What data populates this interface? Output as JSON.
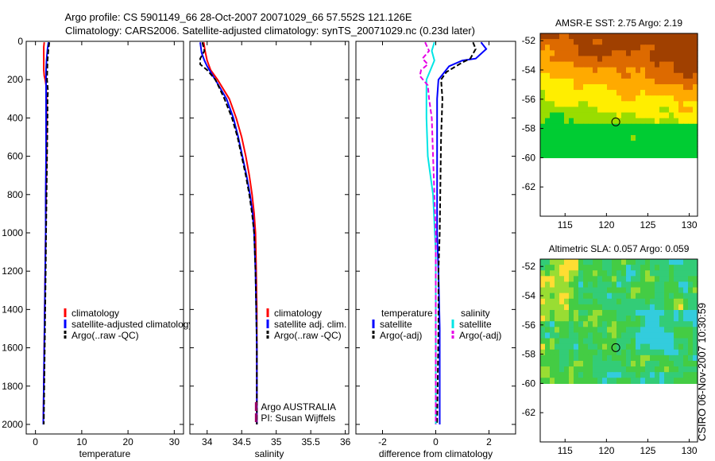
{
  "figure": {
    "title_line1": "Argo profile: CS 5901149_66 28-Oct-2007 20071029_66 57.552S 121.126E",
    "title_line2": "Climatology: CARS2006. Satellite-adjusted climatology: synTS_20071029.nc (0.23d later)",
    "side_stamp": "CSIRO 06-Nov-2007 10:30:59"
  },
  "chart_data": [
    {
      "type": "line",
      "id": "temperature",
      "xlabel": "temperature",
      "ylabel": "",
      "xlim": [
        -2,
        32
      ],
      "ylim": [
        2050,
        0
      ],
      "xticks": [
        0,
        10,
        20,
        30
      ],
      "yticks": [
        0,
        200,
        400,
        600,
        800,
        1000,
        1200,
        1400,
        1600,
        1800,
        2000
      ],
      "legend": [
        "climatology",
        "satellite-adjusted climatology",
        "Argo(..raw -QC)"
      ],
      "legend_position": "center",
      "series": [
        {
          "name": "climatology",
          "color": "#ff0000",
          "dash": "",
          "points": [
            [
              1.9,
              5
            ],
            [
              1.8,
              30
            ],
            [
              1.8,
              60
            ],
            [
              1.8,
              100
            ],
            [
              1.8,
              150
            ],
            [
              1.9,
              180
            ],
            [
              2.1,
              200
            ],
            [
              2.3,
              230
            ],
            [
              2.4,
              300
            ],
            [
              2.4,
              400
            ],
            [
              2.4,
              600
            ],
            [
              2.3,
              800
            ],
            [
              2.2,
              1000
            ],
            [
              2.1,
              1200
            ],
            [
              2.0,
              1400
            ],
            [
              1.9,
              1600
            ],
            [
              1.8,
              1800
            ],
            [
              1.7,
              2000
            ]
          ]
        },
        {
          "name": "satellite-adjusted climatology",
          "color": "#0000ff",
          "dash": "",
          "points": [
            [
              2.8,
              5
            ],
            [
              2.6,
              40
            ],
            [
              2.4,
              100
            ],
            [
              2.3,
              150
            ],
            [
              2.3,
              200
            ],
            [
              2.3,
              300
            ],
            [
              2.3,
              400
            ],
            [
              2.3,
              600
            ],
            [
              2.2,
              800
            ],
            [
              2.2,
              1000
            ],
            [
              2.1,
              1200
            ],
            [
              2.0,
              1400
            ],
            [
              1.9,
              1600
            ],
            [
              1.8,
              1800
            ],
            [
              1.7,
              2000
            ]
          ]
        },
        {
          "name": "Argo(..raw -QC)",
          "color": "#000000",
          "dash": "6,3",
          "points": [
            [
              3.0,
              5
            ],
            [
              2.8,
              40
            ],
            [
              2.6,
              100
            ],
            [
              2.5,
              200
            ],
            [
              2.7,
              260
            ],
            [
              2.6,
              300
            ],
            [
              2.6,
              400
            ],
            [
              2.5,
              600
            ],
            [
              2.4,
              800
            ],
            [
              2.3,
              1000
            ],
            [
              2.2,
              1200
            ],
            [
              2.1,
              1400
            ],
            [
              2.0,
              1600
            ],
            [
              1.9,
              1800
            ],
            [
              1.8,
              2000
            ]
          ]
        }
      ]
    },
    {
      "type": "line",
      "id": "salinity",
      "xlabel": "salinity",
      "ylabel": "",
      "xlim": [
        33.75,
        36.05
      ],
      "ylim": [
        2050,
        0
      ],
      "xticks": [
        34,
        34.5,
        35,
        35.5,
        36
      ],
      "legend": [
        "climatology",
        "satellite adj. clim.",
        "Argo(..raw -QC)"
      ],
      "legend_position": "center-right",
      "series": [
        {
          "name": "climatology",
          "color": "#ff0000",
          "dash": "",
          "points": [
            [
              33.95,
              5
            ],
            [
              33.97,
              50
            ],
            [
              34.0,
              100
            ],
            [
              34.05,
              150
            ],
            [
              34.15,
              200
            ],
            [
              34.32,
              300
            ],
            [
              34.42,
              400
            ],
            [
              34.5,
              500
            ],
            [
              34.56,
              600
            ],
            [
              34.61,
              700
            ],
            [
              34.65,
              800
            ],
            [
              34.68,
              900
            ],
            [
              34.7,
              1000
            ],
            [
              34.71,
              1200
            ],
            [
              34.72,
              1400
            ],
            [
              34.72,
              1600
            ],
            [
              34.72,
              1800
            ],
            [
              34.72,
              2000
            ]
          ]
        },
        {
          "name": "satellite adj. clim.",
          "color": "#0000ff",
          "dash": "",
          "points": [
            [
              33.9,
              5
            ],
            [
              33.92,
              60
            ],
            [
              33.96,
              100
            ],
            [
              34.0,
              130
            ],
            [
              34.05,
              160
            ],
            [
              34.15,
              220
            ],
            [
              34.28,
              300
            ],
            [
              34.38,
              400
            ],
            [
              34.45,
              500
            ],
            [
              34.51,
              600
            ],
            [
              34.57,
              700
            ],
            [
              34.62,
              800
            ],
            [
              34.66,
              900
            ],
            [
              34.68,
              1000
            ],
            [
              34.7,
              1200
            ],
            [
              34.71,
              1400
            ],
            [
              34.72,
              1600
            ],
            [
              34.72,
              1800
            ],
            [
              34.72,
              2000
            ]
          ]
        },
        {
          "name": "Argo(..raw -QC)",
          "color": "#000000",
          "dash": "6,3",
          "points": [
            [
              33.93,
              5
            ],
            [
              33.96,
              50
            ],
            [
              33.9,
              90
            ],
            [
              33.9,
              120
            ],
            [
              34.0,
              150
            ],
            [
              34.12,
              200
            ],
            [
              34.25,
              300
            ],
            [
              34.36,
              400
            ],
            [
              34.44,
              500
            ],
            [
              34.5,
              600
            ],
            [
              34.56,
              700
            ],
            [
              34.61,
              800
            ],
            [
              34.65,
              900
            ],
            [
              34.68,
              1000
            ],
            [
              34.7,
              1200
            ],
            [
              34.71,
              1400
            ],
            [
              34.72,
              1600
            ],
            [
              34.72,
              1800
            ],
            [
              34.72,
              2000
            ]
          ]
        }
      ],
      "annotations": [
        "Argo AUSTRALIA",
        "PI: Susan Wijffels"
      ]
    },
    {
      "type": "line",
      "id": "difference",
      "xlabel": "difference from climatology",
      "ylabel": "",
      "xlim": [
        -3,
        3
      ],
      "ylim": [
        2050,
        0
      ],
      "xticks": [
        -2,
        0,
        2
      ],
      "legend": [
        "temperature",
        "satellite",
        "Argo(-adj)",
        "salinity",
        "satellite",
        "Argo(-adj)"
      ],
      "legend_position": "center",
      "series": [
        {
          "name": "temperature satellite",
          "color": "#0000ff",
          "dash": "",
          "points": [
            [
              1.7,
              5
            ],
            [
              1.9,
              40
            ],
            [
              1.5,
              90
            ],
            [
              1.0,
              100
            ],
            [
              0.5,
              130
            ],
            [
              0.1,
              200
            ],
            [
              0.05,
              300
            ],
            [
              0.05,
              500
            ],
            [
              0.05,
              1000
            ],
            [
              0.1,
              1200
            ],
            [
              0.15,
              1500
            ],
            [
              0.15,
              2000
            ]
          ]
        },
        {
          "name": "temperature Argo(-adj)",
          "color": "#000000",
          "dash": "6,3",
          "points": [
            [
              1.4,
              5
            ],
            [
              1.5,
              40
            ],
            [
              1.3,
              90
            ],
            [
              1.0,
              110
            ],
            [
              0.4,
              160
            ],
            [
              0.2,
              200
            ],
            [
              0.25,
              300
            ],
            [
              0.2,
              500
            ],
            [
              0.15,
              1000
            ],
            [
              0.1,
              1200
            ],
            [
              0.1,
              1500
            ],
            [
              0.05,
              2000
            ]
          ]
        },
        {
          "name": "salinity satellite",
          "color": "#00e5e5",
          "dash": "",
          "points": [
            [
              -0.05,
              5
            ],
            [
              -0.15,
              50
            ],
            [
              -0.05,
              100
            ],
            [
              -0.35,
              200
            ],
            [
              -0.35,
              400
            ],
            [
              -0.3,
              600
            ],
            [
              -0.1,
              800
            ],
            [
              0.0,
              1100
            ],
            [
              0.0,
              2000
            ]
          ]
        },
        {
          "name": "salinity Argo(-adj)",
          "color": "#e600e6",
          "dash": "6,3",
          "points": [
            [
              -0.4,
              5
            ],
            [
              -0.25,
              50
            ],
            [
              -0.5,
              90
            ],
            [
              -0.3,
              120
            ],
            [
              -0.55,
              150
            ],
            [
              -0.6,
              180
            ],
            [
              -0.3,
              230
            ],
            [
              -0.25,
              300
            ],
            [
              -0.15,
              400
            ],
            [
              -0.1,
              600
            ],
            [
              -0.05,
              800
            ],
            [
              0.0,
              1000
            ],
            [
              0.0,
              2000
            ]
          ]
        }
      ]
    },
    {
      "type": "heatmap",
      "id": "amsre_sst",
      "title": "AMSR-E SST: 2.75 Argo: 2.19",
      "xlim": [
        112,
        131
      ],
      "ylim": [
        -64,
        -51.5
      ],
      "xticks": [
        115,
        120,
        125,
        130
      ],
      "yticks": [
        -52,
        -54,
        -56,
        -58,
        -60,
        -62
      ],
      "data_extent_lat": [
        -60,
        -51.5
      ],
      "colormap": [
        "#00cc33",
        "#99dd00",
        "#ffee00",
        "#ffaa00",
        "#dd6a00",
        "#a04000"
      ],
      "profile_marker": {
        "lon": 121.126,
        "lat": -57.552
      }
    },
    {
      "type": "heatmap",
      "id": "altimetric_sla",
      "title": "Altimetric SLA: 0.057 Argo: 0.059",
      "xlim": [
        112,
        131
      ],
      "ylim": [
        -64,
        -51.5
      ],
      "xticks": [
        115,
        120,
        125,
        130
      ],
      "yticks": [
        -52,
        -54,
        -56,
        -58,
        -60,
        -62
      ],
      "data_extent_lat": [
        -60,
        -51.5
      ],
      "colormap": [
        "#33ccdd",
        "#33cc77",
        "#44cc44",
        "#99dd33",
        "#ffdd33"
      ],
      "profile_marker": {
        "lon": 121.126,
        "lat": -57.552
      }
    }
  ]
}
